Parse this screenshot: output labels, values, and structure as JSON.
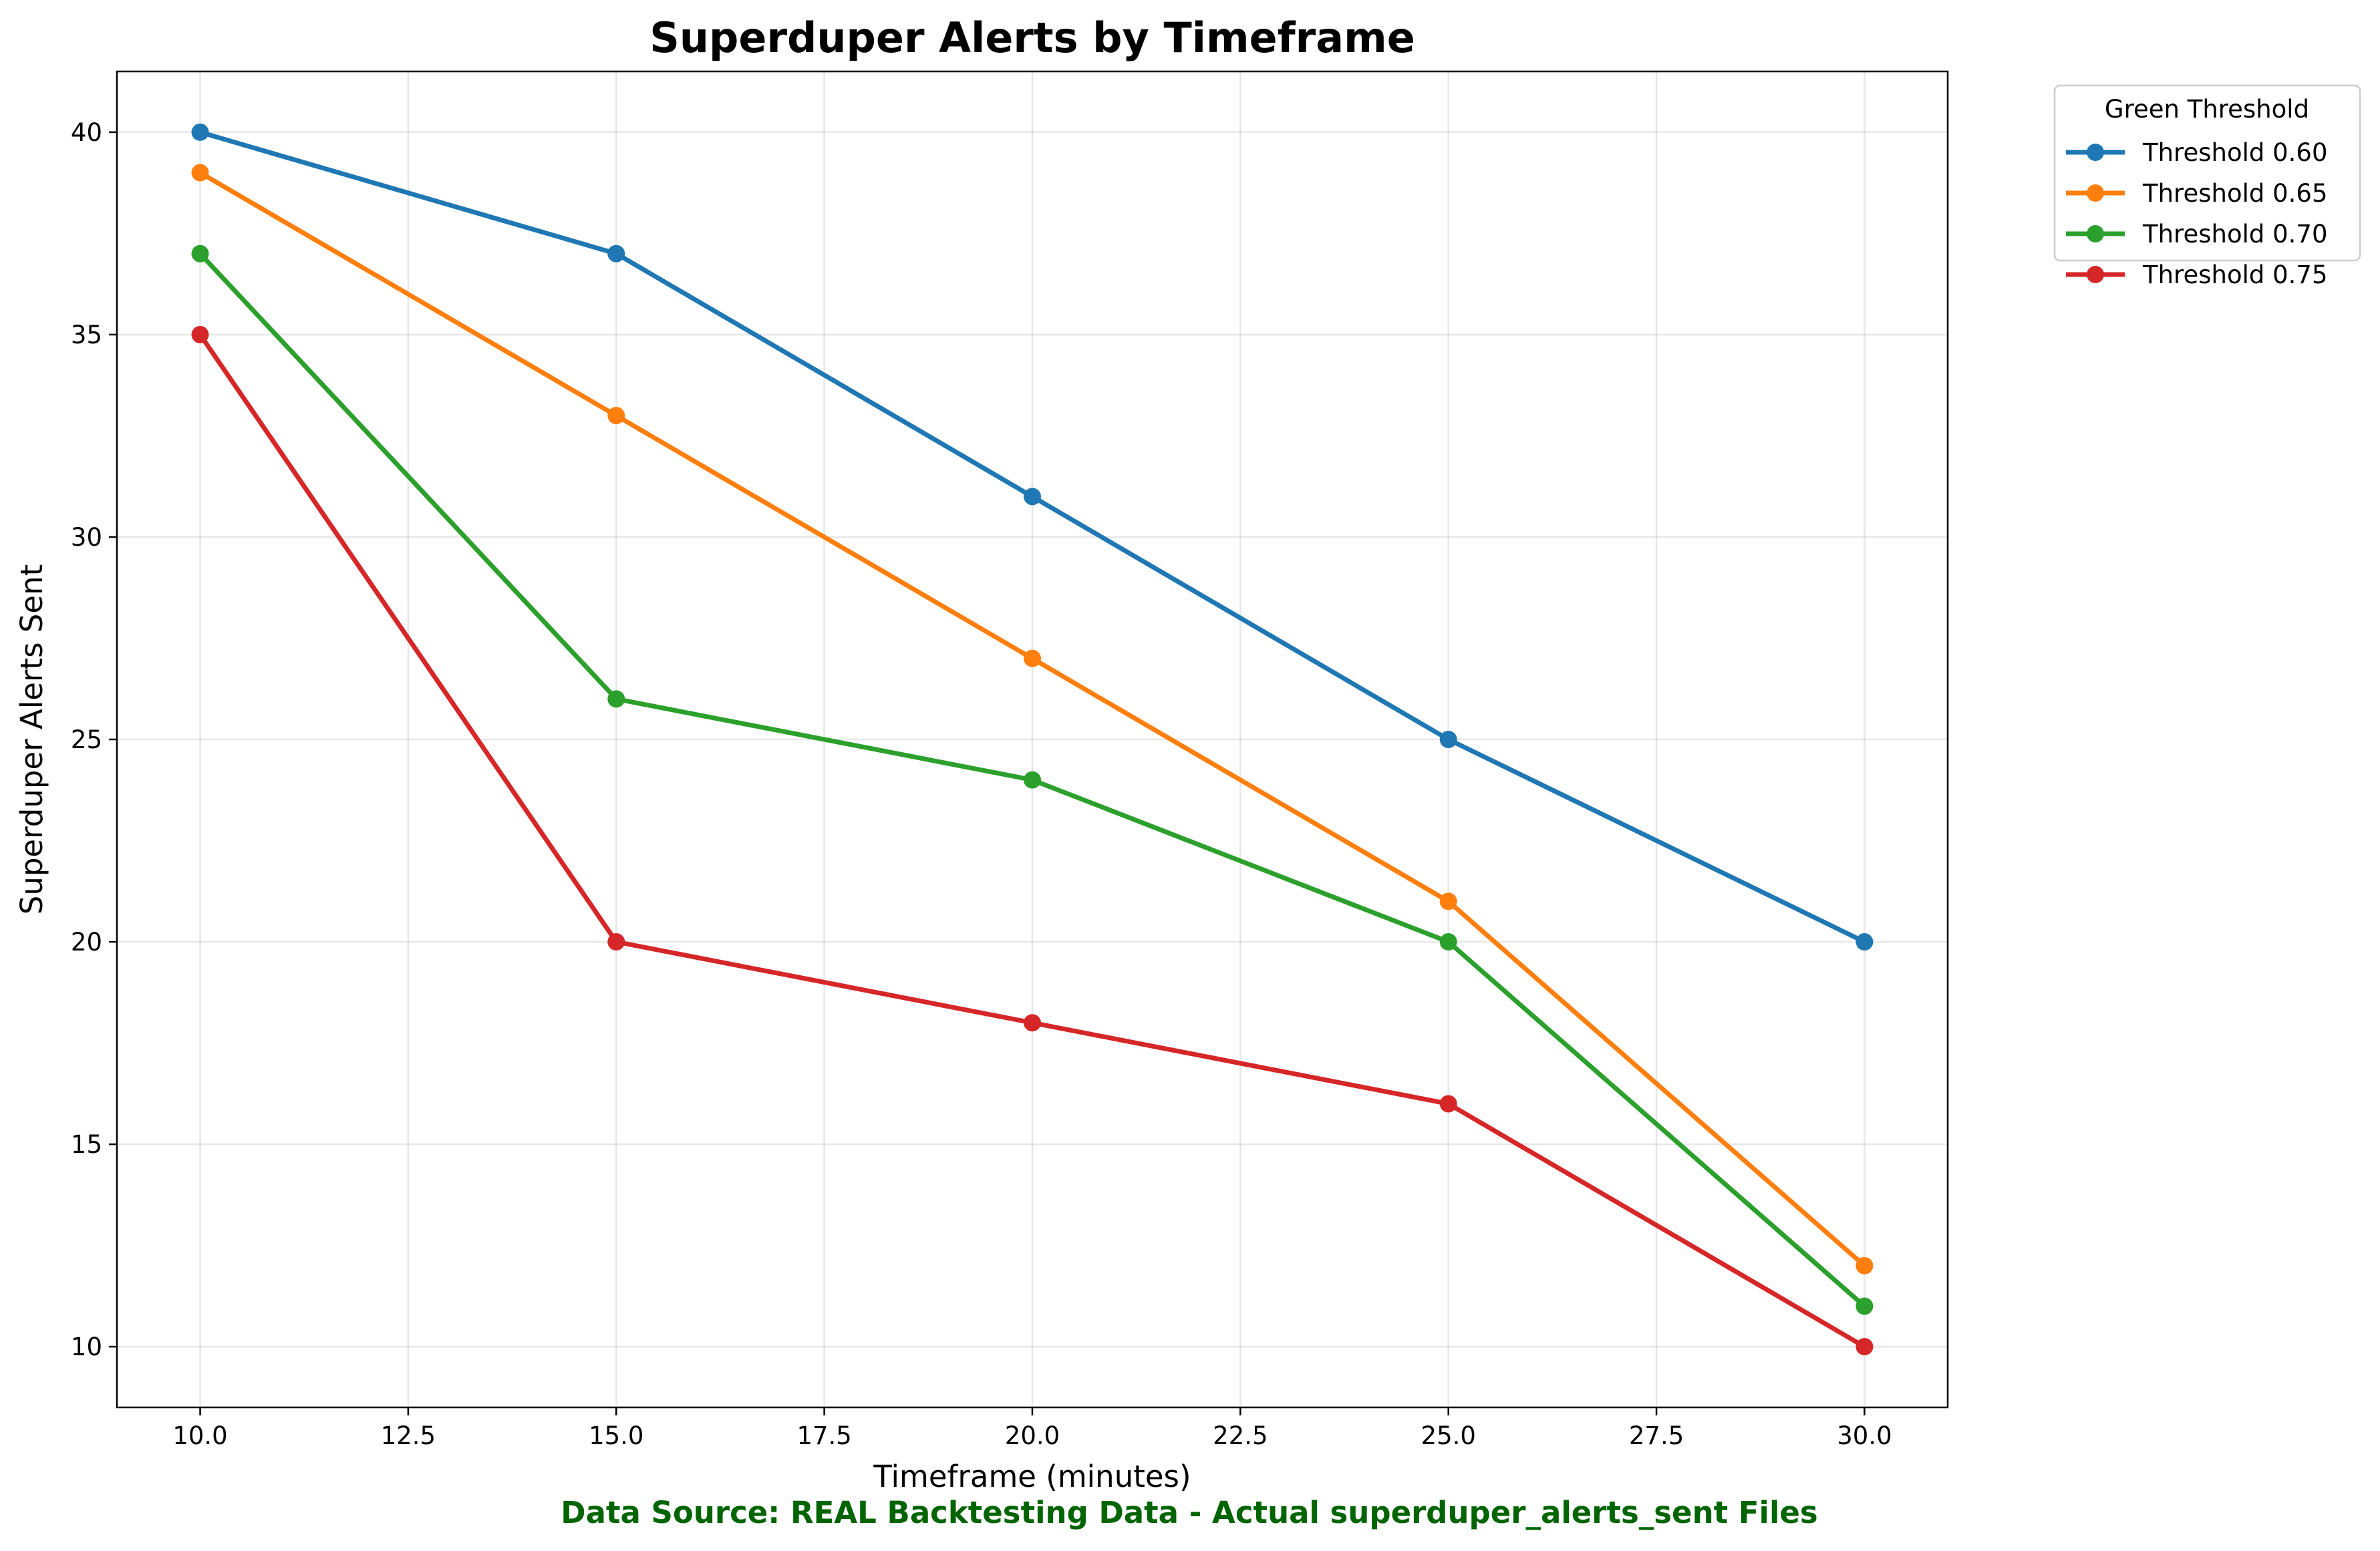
{
  "chart_data": {
    "type": "line",
    "title": "Superduper Alerts by Timeframe",
    "xlabel": "Timeframe (minutes)",
    "ylabel": "Superduper Alerts Sent",
    "x": [
      10,
      15,
      20,
      25,
      30
    ],
    "xlim": [
      9.0,
      31.0
    ],
    "ylim": [
      8.5,
      41.5
    ],
    "xticks": [
      10.0,
      12.5,
      15.0,
      17.5,
      20.0,
      22.5,
      25.0,
      27.5,
      30.0
    ],
    "xtick_labels": [
      "10.0",
      "12.5",
      "15.0",
      "17.5",
      "20.0",
      "22.5",
      "25.0",
      "27.5",
      "30.0"
    ],
    "yticks": [
      10,
      15,
      20,
      25,
      30,
      35,
      40
    ],
    "ytick_labels": [
      "10",
      "15",
      "20",
      "25",
      "30",
      "35",
      "40"
    ],
    "grid": true,
    "legend": {
      "title": "Green Threshold",
      "placement": "outside top-right"
    },
    "series": [
      {
        "name": "Threshold 0.60",
        "color": "#1f77b4",
        "values": [
          40,
          37,
          31,
          25,
          20
        ]
      },
      {
        "name": "Threshold 0.65",
        "color": "#ff7f0e",
        "values": [
          39,
          33,
          27,
          21,
          12
        ]
      },
      {
        "name": "Threshold 0.70",
        "color": "#2ca02c",
        "values": [
          37,
          26,
          24,
          20,
          11
        ]
      },
      {
        "name": "Threshold 0.75",
        "color": "#d62728",
        "values": [
          35,
          20,
          18,
          16,
          10
        ]
      }
    ],
    "annotation": {
      "text": "Data Source: REAL Backtesting Data - Actual superduper_alerts_sent Files",
      "color": "#006400"
    }
  }
}
